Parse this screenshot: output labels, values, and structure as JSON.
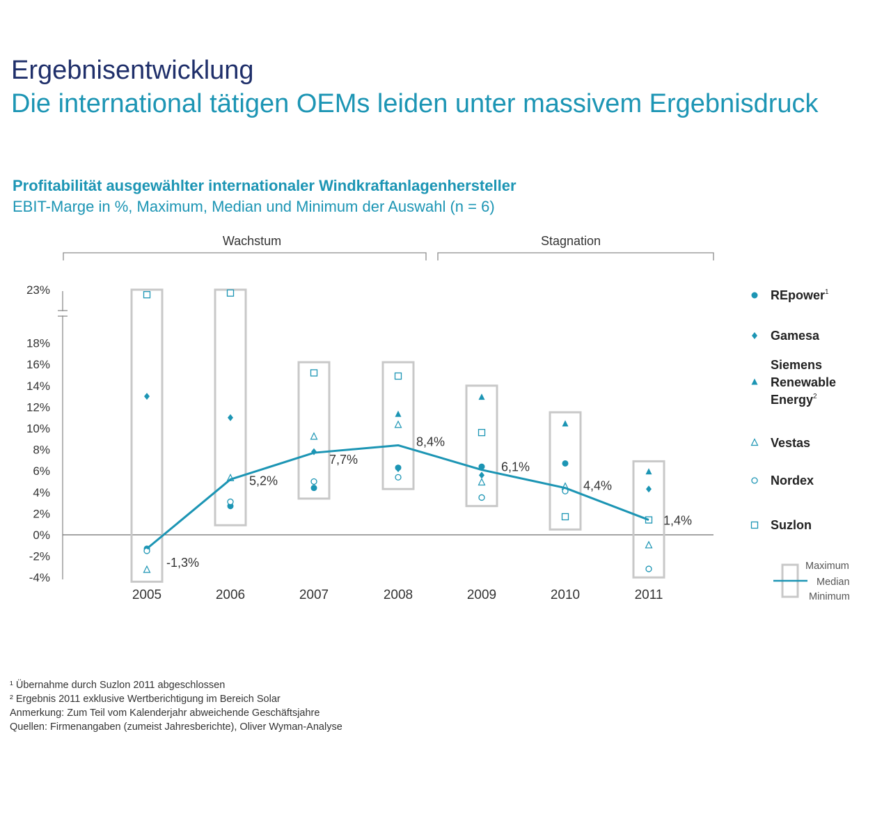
{
  "header": {
    "title": "Ergebnisentwicklung",
    "subtitle": "Die international tätigen OEMs leiden unter massivem Ergebnisdruck"
  },
  "chart_header": {
    "title": "Profitabilität ausgewählter internationaler Windkraftanlagenhersteller",
    "subtitle": "EBIT-Marge in %, Maximum, Median und Minimum der Auswahl (n = 6)"
  },
  "colors": {
    "accent": "#1c95b4",
    "box": "#c8c8c8",
    "axis": "#8c8c8c"
  },
  "chart_data": {
    "type": "scatter",
    "phases": [
      {
        "label": "Wachstum",
        "from": "2005",
        "to": "2008"
      },
      {
        "label": "Stagnation",
        "from": "2009",
        "to": "2011"
      }
    ],
    "categories": [
      "2005",
      "2006",
      "2007",
      "2008",
      "2009",
      "2010",
      "2011"
    ],
    "y_ticks": [
      "23%",
      "18%",
      "16%",
      "14%",
      "12%",
      "10%",
      "8%",
      "6%",
      "4%",
      "2%",
      "0%",
      "-2%",
      "-4%"
    ],
    "ylim": [
      -4,
      23
    ],
    "y_axis_break": "between 18% and 23%",
    "series": [
      {
        "name": "REpower",
        "footnote": "1",
        "marker": "circle-filled",
        "values": [
          -1.3,
          2.7,
          4.4,
          6.3,
          6.4,
          6.7,
          null
        ]
      },
      {
        "name": "Gamesa",
        "footnote": "",
        "marker": "diamond-filled",
        "values": [
          13.0,
          11.0,
          7.8,
          6.2,
          5.6,
          4.2,
          4.3
        ]
      },
      {
        "name": "Siemens Renewable Energy",
        "name_lines": [
          "Siemens",
          "Renewable",
          "Energy"
        ],
        "footnote": "2",
        "marker": "triangle-filled",
        "values": [
          null,
          null,
          null,
          11.3,
          12.9,
          10.4,
          5.9
        ]
      },
      {
        "name": "Vestas",
        "footnote": "",
        "marker": "triangle-open",
        "values": [
          -3.3,
          5.3,
          9.2,
          10.3,
          4.9,
          4.5,
          -1.0
        ]
      },
      {
        "name": "Nordex",
        "footnote": "",
        "marker": "circle-open",
        "values": [
          -1.5,
          3.1,
          5.0,
          5.4,
          3.5,
          4.1,
          -3.2
        ]
      },
      {
        "name": "Suzlon",
        "footnote": "",
        "marker": "square-open",
        "values": [
          22.4,
          22.6,
          15.2,
          14.9,
          9.6,
          1.7,
          1.4
        ]
      }
    ],
    "median": {
      "values": [
        -1.3,
        5.2,
        7.7,
        8.4,
        6.1,
        4.4,
        1.4
      ],
      "labels": [
        "-1,3%",
        "5,2%",
        "7,7%",
        "8,4%",
        "6,1%",
        "4,4%",
        "1,4%"
      ]
    },
    "range_boxes": [
      {
        "year": "2005",
        "max": 23.0,
        "min": -4.4
      },
      {
        "year": "2006",
        "max": 23.0,
        "min": 0.9
      },
      {
        "year": "2007",
        "max": 16.2,
        "min": 3.4
      },
      {
        "year": "2008",
        "max": 16.2,
        "min": 4.3
      },
      {
        "year": "2009",
        "max": 14.0,
        "min": 2.7
      },
      {
        "year": "2010",
        "max": 11.5,
        "min": 0.5
      },
      {
        "year": "2011",
        "max": 6.9,
        "min": -4.0
      }
    ],
    "legend_key": {
      "max_label": "Maximum",
      "median_label": "Median",
      "min_label": "Minimum"
    }
  },
  "footnotes": [
    "¹ Übernahme durch Suzlon 2011 abgeschlossen",
    "² Ergebnis 2011 exklusive Wertberichtigung im Bereich Solar",
    "Anmerkung: Zum Teil vom Kalenderjahr abweichende Geschäftsjahre",
    "Quellen: Firmenangaben (zumeist Jahresberichte), Oliver Wyman-Analyse"
  ]
}
